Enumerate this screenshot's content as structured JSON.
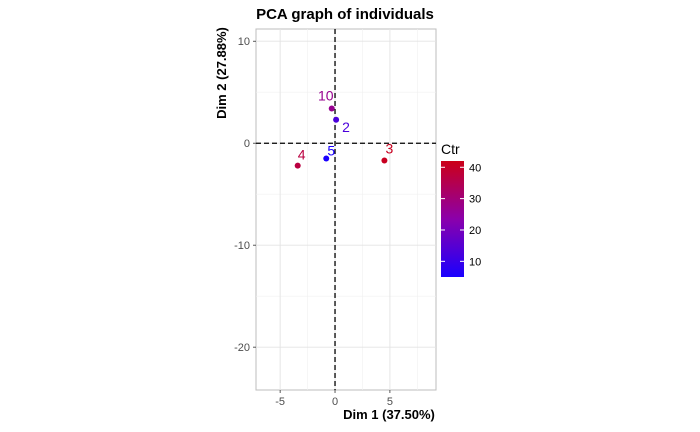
{
  "chart_data": {
    "type": "scatter",
    "title": "PCA graph of individuals",
    "xlabel": "Dim 1 (37.50%)",
    "ylabel": "Dim 2 (27.88%)",
    "xlim": [
      -7.2,
      9.2
    ],
    "ylim": [
      -24.2,
      11.2
    ],
    "xticks": [
      -5,
      0,
      5
    ],
    "yticks": [
      -20,
      -10,
      0,
      10
    ],
    "grid": true,
    "reference_lines": {
      "x": 0,
      "y": 0,
      "style": "dashed"
    },
    "points": [
      {
        "label": "10",
        "x": -0.3,
        "y": 3.4,
        "ctr": 27
      },
      {
        "label": "2",
        "x": 0.1,
        "y": 2.3,
        "ctr": 13
      },
      {
        "label": "5",
        "x": -0.8,
        "y": -1.5,
        "ctr": 5
      },
      {
        "label": "4",
        "x": -3.4,
        "y": -2.2,
        "ctr": 37
      },
      {
        "label": "3",
        "x": 4.5,
        "y": -1.7,
        "ctr": 41
      }
    ],
    "legend": {
      "title": "Ctr",
      "placement": "right",
      "range": [
        5,
        42
      ],
      "ticks": [
        10,
        20,
        30,
        40
      ],
      "colors": {
        "low": "#1a00ff",
        "mid": "#8b00ab",
        "high": "#cc0018"
      }
    }
  }
}
